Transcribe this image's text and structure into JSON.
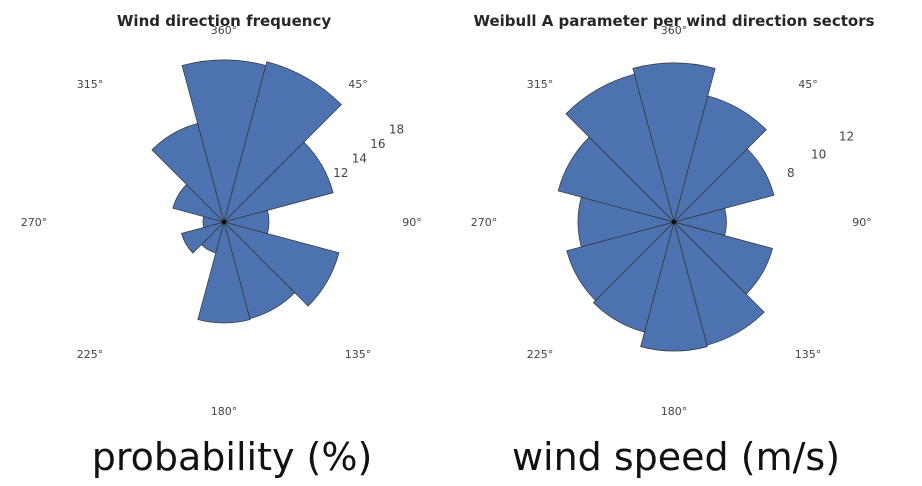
{
  "chart_data": [
    {
      "type": "polar-bar",
      "title": "Wind direction frequency",
      "caption": "probability (%)",
      "angle_labels": [
        "360°",
        "45°",
        "90°",
        "135°",
        "180°",
        "225°",
        "270°",
        "315°"
      ],
      "r_tick_labels": [
        "12",
        "14",
        "16",
        "18"
      ],
      "r_ticks": [
        12,
        14,
        16,
        18
      ],
      "r_max": 18,
      "sector_width_deg": 30,
      "sectors_deg": [
        0,
        30,
        60,
        90,
        120,
        150,
        180,
        210,
        240,
        270,
        300,
        330
      ],
      "values": [
        16.2,
        16.6,
        11.3,
        4.5,
        11.9,
        10.0,
        10.1,
        3.2,
        4.4,
        2.1,
        5.3,
        10.2
      ],
      "bar_color": "#4c72b0",
      "grid": false
    },
    {
      "type": "polar-bar",
      "title": "Weibull A parameter per wind direction sectors",
      "caption": "wind speed (m/s)",
      "angle_labels": [
        "360°",
        "45°",
        "90°",
        "135°",
        "180°",
        "225°",
        "270°",
        "315°"
      ],
      "r_tick_labels": [
        "8",
        "10",
        "12"
      ],
      "r_ticks": [
        8,
        10,
        12
      ],
      "r_max": 12,
      "sector_width_deg": 30,
      "sectors_deg": [
        0,
        30,
        60,
        90,
        120,
        150,
        180,
        210,
        240,
        270,
        300,
        330
      ],
      "values": [
        10.6,
        8.7,
        6.9,
        3.5,
        6.8,
        8.5,
        8.6,
        7.6,
        7.4,
        6.4,
        8.0,
        10.2
      ],
      "bar_color": "#4c72b0",
      "grid": false
    }
  ]
}
